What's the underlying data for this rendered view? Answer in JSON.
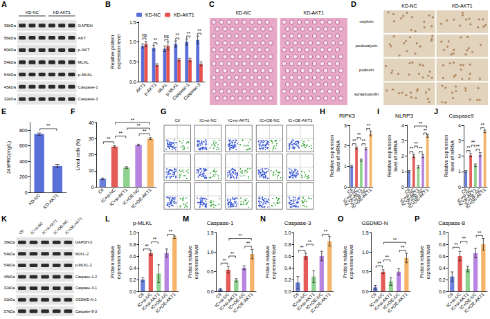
{
  "figures": [
    {
      "panel": "A",
      "type": "blot",
      "groups": [
        "KD-NC",
        "KD-AKT1"
      ],
      "rows": [
        {
          "kda": "36kDa",
          "name": "GAPDH"
        },
        {
          "kda": "56kDa",
          "name": "AKT"
        },
        {
          "kda": "60kDa",
          "name": "p-AKT"
        },
        {
          "kda": "54kDa",
          "name": "MLKL"
        },
        {
          "kda": "54kDa",
          "name": "p-MLKL"
        },
        {
          "kda": "45kDa",
          "name": "Caspase-1"
        },
        {
          "kda": "32kDa",
          "name": "Caspase-3"
        }
      ]
    },
    {
      "panel": "C",
      "type": "histology",
      "columns": [
        "KD-NC",
        "KD-AKT1"
      ]
    },
    {
      "panel": "D",
      "type": "ihc",
      "columns": [
        "KD-NC",
        "KD-AKT1"
      ],
      "rows": [
        "nephrin",
        "podocalyxin",
        "podocin",
        "synaptopodin"
      ]
    },
    {
      "panel": "G",
      "type": "flow",
      "columns": [
        "Ctl",
        "IC+si-NC",
        "IC+si-AKT1",
        "IC+OE-NC",
        "IC+OE-AKT1"
      ]
    },
    {
      "panel": "K",
      "type": "blot",
      "lanes": [
        "Ctl",
        "IC+si-NC",
        "IC+si-AKT1",
        "IC+OE-NC",
        "IC+OE-AKT1"
      ],
      "rows": [
        {
          "kda": "36kDa",
          "name": "GAPDH-3"
        },
        {
          "kda": "54kDa",
          "name": "MLKL-2"
        },
        {
          "kda": "54kDa",
          "name": "p-MLKL-2"
        },
        {
          "kda": "45kDa",
          "name": "Caspase-1-2"
        },
        {
          "kda": "32kDa",
          "name": "Caspase-3-1"
        },
        {
          "kda": "31kDa",
          "name": "GSDMD-N-1"
        },
        {
          "kda": "57kDa",
          "name": "Caspase-8-3"
        }
      ]
    }
  ],
  "chart_data": [
    {
      "panel": "B",
      "type": "bar",
      "categories": [
        "AKT1",
        "p-AKT1",
        "MLKL",
        "p-MLKL",
        "Caspase-1",
        "Caspase-3"
      ],
      "series": [
        {
          "name": "KD-NC",
          "color": "#5b6fd8",
          "values": [
            0.9,
            0.85,
            0.83,
            0.95,
            1.0,
            1.05
          ],
          "errors": [
            0.05,
            0.06,
            0.07,
            0.08,
            0.08,
            0.1
          ]
        },
        {
          "name": "KD-AKT1",
          "color": "#e8504d",
          "values": [
            0.95,
            0.42,
            0.9,
            0.55,
            0.55,
            0.45
          ],
          "errors": [
            0.07,
            0.03,
            0.1,
            0.03,
            0.04,
            0.05
          ]
        }
      ],
      "y_label": "Relative protein expression level",
      "ylim": [
        0,
        1.5
      ],
      "yticks": [
        {
          "value": 0,
          "label": "0.0"
        },
        0.5,
        {
          "value": 1,
          "label": "1.0"
        },
        1.5
      ],
      "grid": false,
      "legend": "top",
      "annotations": [
        {
          "category": "AKT1",
          "label": "ns",
          "y": 1.1
        },
        {
          "category": "p-AKT1",
          "label": "**",
          "y": 0.98
        },
        {
          "category": "MLKL",
          "label": "ns",
          "y": 1.07
        },
        {
          "category": "p-MLKL",
          "label": "**",
          "y": 1.1
        },
        {
          "category": "Caspase-1",
          "label": "**",
          "y": 1.15
        },
        {
          "category": "Caspase-3",
          "label": "**",
          "y": 1.22
        }
      ]
    },
    {
      "panel": "E",
      "type": "bar",
      "categories": [
        "KD-NC",
        "KD-AKT1"
      ],
      "values": [
        750,
        340
      ],
      "errors": [
        15,
        20
      ],
      "colors": [
        "#5b6fd8",
        "#5b6fd8"
      ],
      "y_label": "24hPRO(mg/L)",
      "ylim": [
        0,
        900
      ],
      "yticks": [
        0,
        200,
        400,
        600,
        800
      ],
      "grid": false,
      "annotations": [
        {
          "categories": [
            "KD-NC",
            "KD-AKT1"
          ],
          "label": "**",
          "y": 820
        }
      ]
    },
    {
      "panel": "F",
      "type": "bar",
      "categories": [
        "Ctl",
        "IC+si-NC",
        "IC+si-AKT1",
        "IC+OE-NC",
        "IC+OE-AKT1"
      ],
      "values": [
        5,
        25,
        12,
        26,
        30
      ],
      "errors": [
        0.5,
        0.6,
        0.5,
        0.5,
        0.6
      ],
      "colors": [
        "#6a7fdb",
        "#e55b57",
        "#8fd18f",
        "#b784e0",
        "#f5b469"
      ],
      "y_label": "Lived cells (%)",
      "ylim": [
        0,
        40
      ],
      "yticks": [
        0,
        10,
        20,
        30,
        40
      ],
      "grid": false,
      "annotations": [
        {
          "categories": [
            "Ctl",
            "IC+si-NC"
          ],
          "label": "**",
          "y": 28
        },
        {
          "categories": [
            "IC+si-NC",
            "IC+si-AKT1"
          ],
          "label": "**",
          "y": 31.5
        },
        {
          "categories": [
            "IC+OE-NC",
            "IC+OE-AKT1"
          ],
          "label": "**",
          "y": 33
        },
        {
          "categories": [
            "IC+si-AKT1",
            "IC+OE-AKT1"
          ],
          "label": "**",
          "y": 36.5
        },
        {
          "categories": [
            "IC+si-NC",
            "IC+OE-AKT1"
          ],
          "label": "**",
          "y": 40
        }
      ]
    },
    {
      "panel": "H",
      "type": "bar",
      "title": "RIPK3",
      "categories": [
        "Ctl",
        "IC+si-NC",
        "IC+si-AKT1",
        "IC+OE-NC",
        "IC+OE-AKT1"
      ],
      "values": [
        1.0,
        1.9,
        1.3,
        1.85,
        2.6
      ],
      "errors": [
        0.05,
        0.05,
        0.05,
        0.05,
        0.12
      ],
      "colors": [
        "#6a7fdb",
        "#e55b57",
        "#8fd18f",
        "#b784e0",
        "#f5b469"
      ],
      "y_label": "Relative expression level of mRNA",
      "ylim": [
        0,
        3
      ],
      "yticks": [
        0,
        1,
        2,
        3
      ],
      "grid": false,
      "annotations": [
        {
          "categories": [
            "Ctl",
            "IC+si-NC"
          ],
          "label": "**",
          "y": 2.1
        },
        {
          "categories": [
            "IC+si-NC",
            "IC+si-AKT1"
          ],
          "label": "**",
          "y": 2.4
        },
        {
          "categories": [
            "IC+si-AKT1",
            "IC+OE-NC"
          ],
          "label": "**",
          "y": 2.1
        },
        {
          "categories": [
            "IC+OE-NC",
            "IC+OE-AKT1"
          ],
          "label": "**",
          "y": 2.85
        }
      ]
    },
    {
      "panel": "I",
      "type": "bar",
      "title": "NLRP3",
      "categories": [
        "Ctl",
        "IC+si-NC",
        "IC+si-AKT1",
        "IC+OE-NC",
        "IC+OE-AKT1"
      ],
      "values": [
        1.0,
        2.0,
        1.3,
        2.0,
        3.3
      ],
      "errors": [
        0.05,
        0.1,
        0.08,
        0.1,
        0.08
      ],
      "colors": [
        "#6a7fdb",
        "#e55b57",
        "#8fd18f",
        "#b784e0",
        "#f5b469"
      ],
      "y_label": "Relative expression level of mRNA",
      "ylim": [
        0,
        4
      ],
      "yticks": [
        0,
        1,
        2,
        3,
        4
      ],
      "grid": false,
      "annotations": [
        {
          "categories": [
            "Ctl",
            "IC+si-NC"
          ],
          "label": "**",
          "y": 2.3
        },
        {
          "categories": [
            "IC+si-NC",
            "IC+si-AKT1"
          ],
          "label": "**",
          "y": 2.65
        },
        {
          "categories": [
            "IC+si-AKT1",
            "IC+OE-NC"
          ],
          "label": "**",
          "y": 2.3
        },
        {
          "categories": [
            "IC+OE-NC",
            "IC+OE-AKT1"
          ],
          "label": "**",
          "y": 3.5
        },
        {
          "categories": [
            "IC+si-NC",
            "IC+OE-AKT1"
          ],
          "label": "**",
          "y": 3.95
        }
      ]
    },
    {
      "panel": "J",
      "type": "bar",
      "title": "Caspase9",
      "categories": [
        "Ctl",
        "IC+si-NC",
        "IC+si-AKT1",
        "IC+OE-NC",
        "IC+OE-AKT1"
      ],
      "values": [
        1.0,
        2.05,
        1.4,
        2.1,
        3.6
      ],
      "errors": [
        0.05,
        0.1,
        0.08,
        0.12,
        0.08
      ],
      "colors": [
        "#6a7fdb",
        "#e55b57",
        "#8fd18f",
        "#b784e0",
        "#f5b469"
      ],
      "y_label": "Relative expression level of mRNA",
      "ylim": [
        0,
        4
      ],
      "yticks": [
        0,
        1,
        2,
        3,
        4
      ],
      "grid": false,
      "annotations": [
        {
          "categories": [
            "Ctl",
            "IC+si-NC"
          ],
          "label": "**",
          "y": 2.35
        },
        {
          "categories": [
            "IC+si-NC",
            "IC+si-AKT1"
          ],
          "label": "**",
          "y": 2.7
        },
        {
          "categories": [
            "IC+si-AKT1",
            "IC+OE-NC"
          ],
          "label": "**",
          "y": 2.45
        },
        {
          "categories": [
            "IC+OE-NC",
            "IC+OE-AKT1"
          ],
          "label": "**",
          "y": 3.85
        }
      ]
    },
    {
      "panel": "L",
      "type": "bar",
      "title": "p-MLKL",
      "categories": [
        "Ctl",
        "IC+si-NC",
        "IC+si-AKT1",
        "IC+OE-NC",
        "IC+OE-AKT1"
      ],
      "values": [
        0.2,
        0.65,
        0.3,
        0.65,
        0.92
      ],
      "errors": [
        0.03,
        0.04,
        0.15,
        0.07,
        0.02
      ],
      "colors": [
        "#6a7fdb",
        "#e55b57",
        "#8fd18f",
        "#b784e0",
        "#f5b469"
      ],
      "y_label": "Protein relative expression level",
      "ylim": [
        0,
        1
      ],
      "yticks": [
        {
          "value": 0,
          "label": "0.0"
        },
        0.2,
        0.4,
        0.6,
        0.8,
        {
          "value": 1,
          "label": "1.0"
        }
      ],
      "grid": false,
      "annotations": [
        {
          "categories": [
            "Ctl",
            "IC+si-NC"
          ],
          "label": "**",
          "y": 0.72
        },
        {
          "categories": [
            "IC+si-NC",
            "IC+si-AKT1"
          ],
          "label": "**",
          "y": 0.84
        },
        {
          "categories": [
            "IC+OE-NC",
            "IC+OE-AKT1"
          ],
          "label": "**",
          "y": 0.97
        }
      ]
    },
    {
      "panel": "M",
      "type": "bar",
      "title": "Caspase-1",
      "categories": [
        "Ctl",
        "IC+si-NC",
        "IC+si-AKT1",
        "IC+OE-NC",
        "IC+OE-AKT1"
      ],
      "values": [
        0.05,
        0.55,
        0.28,
        0.6,
        0.95
      ],
      "errors": [
        0.03,
        0.08,
        0.04,
        0.05,
        0.12
      ],
      "colors": [
        "#6a7fdb",
        "#e55b57",
        "#8fd18f",
        "#b784e0",
        "#f5b469"
      ],
      "y_label": "Protein relative expression level",
      "ylim": [
        0,
        1.5
      ],
      "yticks": [
        {
          "value": 0,
          "label": "0.0"
        },
        0.5,
        {
          "value": 1,
          "label": "1.0"
        },
        1.5
      ],
      "grid": false,
      "annotations": [
        {
          "categories": [
            "Ctl",
            "IC+si-NC"
          ],
          "label": "**",
          "y": 0.72
        },
        {
          "categories": [
            "IC+si-NC",
            "IC+si-AKT1"
          ],
          "label": "**",
          "y": 0.9
        },
        {
          "categories": [
            "IC+OE-NC",
            "IC+OE-AKT1"
          ],
          "label": "**",
          "y": 1.15
        },
        {
          "categories": [
            "IC+si-NC",
            "IC+OE-AKT1"
          ],
          "label": "**",
          "y": 1.35
        }
      ]
    },
    {
      "panel": "N",
      "type": "bar",
      "title": "Caspase-3",
      "categories": [
        "Ctl",
        "IC+si-NC",
        "IC+si-AKT1",
        "IC+OE-NC",
        "IC+OE-AKT1"
      ],
      "values": [
        0.15,
        0.6,
        0.25,
        0.6,
        0.85
      ],
      "errors": [
        0.1,
        0.05,
        0.1,
        0.08,
        0.08
      ],
      "colors": [
        "#6a7fdb",
        "#e55b57",
        "#8fd18f",
        "#b784e0",
        "#f5b469"
      ],
      "y_label": "Protein relative expression level",
      "ylim": [
        0,
        1
      ],
      "yticks": [
        {
          "value": 0,
          "label": "0.0"
        },
        0.2,
        0.4,
        0.6,
        0.8,
        {
          "value": 1,
          "label": "1.0"
        }
      ],
      "grid": false,
      "annotations": [
        {
          "categories": [
            "Ctl",
            "IC+si-NC"
          ],
          "label": "**",
          "y": 0.7
        },
        {
          "categories": [
            "IC+si-NC",
            "IC+si-AKT1"
          ],
          "label": "**",
          "y": 0.8
        },
        {
          "categories": [
            "IC+OE-NC",
            "IC+OE-AKT1"
          ],
          "label": "**",
          "y": 0.97
        }
      ]
    },
    {
      "panel": "O",
      "type": "bar",
      "title": "GSDMD-N",
      "categories": [
        "Ctl",
        "IC+si-NC",
        "IC+si-AKT1",
        "IC+OE-NC",
        "IC+OE-AKT1"
      ],
      "values": [
        0.1,
        0.5,
        0.25,
        0.5,
        0.85
      ],
      "errors": [
        0.05,
        0.05,
        0.1,
        0.08,
        0.12
      ],
      "colors": [
        "#6a7fdb",
        "#e55b57",
        "#8fd18f",
        "#b784e0",
        "#f5b469"
      ],
      "y_label": "Protein relative expression level",
      "ylim": [
        0,
        1.5
      ],
      "yticks": [
        {
          "value": 0,
          "label": "0.0"
        },
        0.5,
        {
          "value": 1,
          "label": "1.0"
        },
        1.5
      ],
      "grid": false,
      "annotations": [
        {
          "categories": [
            "Ctl",
            "IC+si-NC"
          ],
          "label": "**",
          "y": 0.65
        },
        {
          "categories": [
            "IC+si-NC",
            "IC+si-AKT1"
          ],
          "label": "**",
          "y": 0.8
        },
        {
          "categories": [
            "IC+OE-NC",
            "IC+OE-AKT1"
          ],
          "label": "**",
          "y": 1.05
        },
        {
          "categories": [
            "IC+si-NC",
            "IC+OE-AKT1"
          ],
          "label": "**",
          "y": 1.25
        }
      ]
    },
    {
      "panel": "P",
      "type": "bar",
      "title": "Caspase-8",
      "categories": [
        "Ctl",
        "IC+si-NC",
        "IC+si-AKT1",
        "IC+OE-NC",
        "IC+OE-AKT1"
      ],
      "values": [
        0.25,
        0.6,
        0.38,
        0.65,
        0.8
      ],
      "errors": [
        0.08,
        0.08,
        0.05,
        0.08,
        0.1
      ],
      "colors": [
        "#6a7fdb",
        "#e55b57",
        "#8fd18f",
        "#b784e0",
        "#f5b469"
      ],
      "y_label": "Protein relative expression level",
      "ylim": [
        0,
        1
      ],
      "yticks": [
        {
          "value": 0,
          "label": "0.0"
        },
        0.2,
        0.4,
        0.6,
        0.8,
        {
          "value": 1,
          "label": "1.0"
        }
      ],
      "grid": false,
      "annotations": [
        {
          "categories": [
            "Ctl",
            "IC+si-NC"
          ],
          "label": "**",
          "y": 0.75
        },
        {
          "categories": [
            "IC+si-NC",
            "IC+si-AKT1"
          ],
          "label": "**",
          "y": 0.85
        },
        {
          "categories": [
            "IC+OE-NC",
            "IC+OE-AKT1"
          ],
          "label": "**",
          "y": 0.95
        }
      ]
    }
  ]
}
